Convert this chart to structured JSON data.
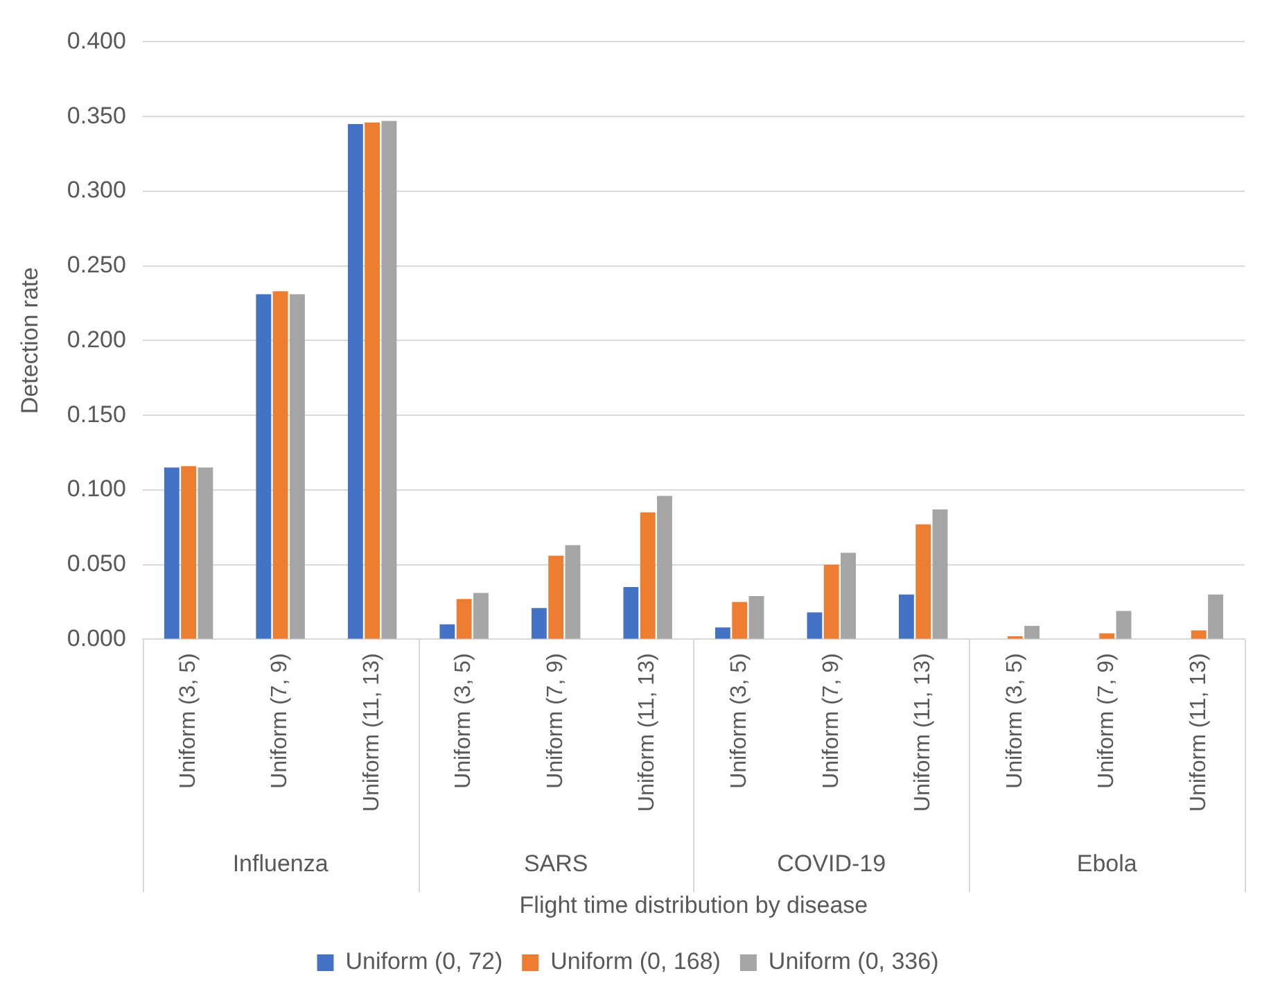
{
  "chart_data": {
    "type": "bar",
    "xlabel": "Flight time distribution by disease",
    "ylabel": "Detection rate",
    "categories": [
      "Uniform (3, 5)",
      "Uniform (7, 9)",
      "Uniform (11, 13)",
      "Uniform (3, 5)",
      "Uniform (7, 9)",
      "Uniform (11, 13)",
      "Uniform (3, 5)",
      "Uniform (7, 9)",
      "Uniform (11, 13)",
      "Uniform (3, 5)",
      "Uniform (7, 9)",
      "Uniform (11, 13)"
    ],
    "annotations": [
      "Influenza",
      "SARS",
      "COVID-19",
      "Ebola"
    ],
    "series": [
      {
        "name": "Uniform (0, 72)",
        "color": "#4472c4",
        "values": [
          0.115,
          0.231,
          0.345,
          0.01,
          0.021,
          0.035,
          0.008,
          0.018,
          0.03,
          0,
          0,
          0
        ]
      },
      {
        "name": "Uniform (0, 168)",
        "color": "#ed7d31",
        "values": [
          0.116,
          0.233,
          0.346,
          0.027,
          0.056,
          0.085,
          0.025,
          0.05,
          0.077,
          0.002,
          0.004,
          0.006
        ]
      },
      {
        "name": "Uniform (0, 336)",
        "color": "#a5a5a5",
        "values": [
          0.115,
          0.231,
          0.347,
          0.031,
          0.063,
          0.096,
          0.029,
          0.058,
          0.087,
          0.009,
          0.019,
          0.03
        ]
      }
    ],
    "ylim": [
      0,
      0.4
    ],
    "yticks": [
      {
        "value": 0,
        "label": "0.000"
      },
      {
        "value": 0.05,
        "label": "0.050"
      },
      {
        "value": 0.1,
        "label": "0.100"
      },
      {
        "value": 0.15,
        "label": "0.150"
      },
      {
        "value": 0.2,
        "label": "0.200"
      },
      {
        "value": 0.25,
        "label": "0.250"
      },
      {
        "value": 0.3,
        "label": "0.300"
      },
      {
        "value": 0.35,
        "label": "0.350"
      },
      {
        "value": 0.4,
        "label": "0.400"
      }
    ],
    "grid": "y",
    "legend": "bottom"
  }
}
